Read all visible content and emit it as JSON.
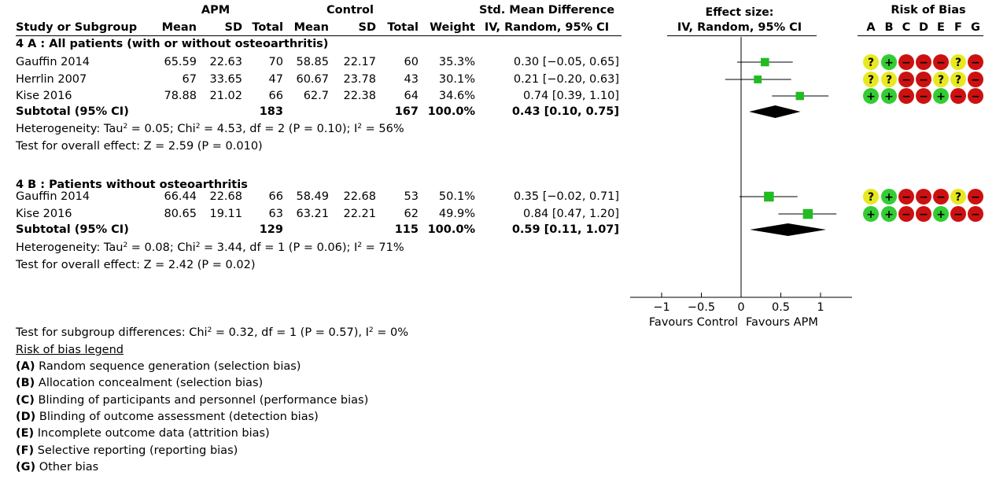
{
  "header": {
    "group_exp": "APM",
    "group_ctrl": "Control",
    "effect_title": "Std. Mean Difference",
    "effect_sub": "IV, Random, 95% CI",
    "plot_title": "Effect size:",
    "plot_sub": "IV, Random, 95% CI",
    "rob_title": "Risk of Bias",
    "cols": {
      "study": "Study or Subgroup",
      "mean_e": "Mean",
      "sd_e": "SD",
      "total_e": "Total",
      "mean_c": "Mean",
      "sd_c": "SD",
      "total_c": "Total",
      "weight": "Weight"
    },
    "rob_letters": [
      "A",
      "B",
      "C",
      "D",
      "E",
      "F",
      "G"
    ]
  },
  "subgroups": [
    {
      "title": "4 A :  All patients (with or without osteoarthritis)",
      "studies": [
        {
          "name": "Gauffin 2014",
          "mean_e": "65.59",
          "sd_e": "22.63",
          "total_e": "70",
          "mean_c": "58.85",
          "sd_c": "22.17",
          "total_c": "60",
          "weight": "35.3%",
          "ci_text": "0.30 [−0.05, 0.65]",
          "rob": [
            "?",
            "+",
            "−",
            "−",
            "−",
            "?",
            "−"
          ]
        },
        {
          "name": "Herrlin 2007",
          "mean_e": "67",
          "sd_e": "33.65",
          "total_e": "47",
          "mean_c": "60.67",
          "sd_c": "23.78",
          "total_c": "43",
          "weight": "30.1%",
          "ci_text": "0.21 [−0.20, 0.63]",
          "rob": [
            "?",
            "?",
            "−",
            "−",
            "?",
            "?",
            "−"
          ]
        },
        {
          "name": "Kise 2016",
          "mean_e": "78.88",
          "sd_e": "21.02",
          "total_e": "66",
          "mean_c": "62.7",
          "sd_c": "22.38",
          "total_c": "64",
          "weight": "34.6%",
          "ci_text": "0.74 [0.39, 1.10]",
          "rob": [
            "+",
            "+",
            "−",
            "−",
            "+",
            "−",
            "−"
          ]
        }
      ],
      "subtotal": {
        "label": "Subtotal (95% CI)",
        "total_e": "183",
        "total_c": "167",
        "weight": "100.0%",
        "ci_text": "0.43 [0.10, 0.75]"
      },
      "heterogeneity": {
        "pre": "Heterogeneity: Tau",
        "sup1": "2",
        "mid": " = 0.05; Chi",
        "sup2": "2",
        "mid2": " = 4.53, df = 2 (P = 0.10); I",
        "sup3": "2",
        "post": " = 56%"
      },
      "overall": "Test for overall effect: Z = 2.59 (P = 0.010)"
    },
    {
      "title": "4 B :  Patients without osteoarthritis",
      "studies": [
        {
          "name": "Gauffin 2014",
          "mean_e": "66.44",
          "sd_e": "22.68",
          "total_e": "66",
          "mean_c": "58.49",
          "sd_c": "22.68",
          "total_c": "53",
          "weight": "50.1%",
          "ci_text": "0.35 [−0.02, 0.71]",
          "rob": [
            "?",
            "+",
            "−",
            "−",
            "−",
            "?",
            "−"
          ]
        },
        {
          "name": "Kise 2016",
          "mean_e": "80.65",
          "sd_e": "19.11",
          "total_e": "63",
          "mean_c": "63.21",
          "sd_c": "22.21",
          "total_c": "62",
          "weight": "49.9%",
          "ci_text": "0.84 [0.47, 1.20]",
          "rob": [
            "+",
            "+",
            "−",
            "−",
            "+",
            "−",
            "−"
          ]
        }
      ],
      "subtotal": {
        "label": "Subtotal (95% CI)",
        "total_e": "129",
        "total_c": "115",
        "weight": "100.0%",
        "ci_text": "0.59 [0.11, 1.07]"
      },
      "heterogeneity": {
        "pre": "Heterogeneity: Tau",
        "sup1": "2",
        "mid": " = 0.08; Chi",
        "sup2": "2",
        "mid2": " = 3.44, df = 1 (P = 0.06); I",
        "sup3": "2",
        "post": " = 71%"
      },
      "overall": "Test for overall effect: Z = 2.42 (P = 0.02)"
    }
  ],
  "subgroup_test": {
    "pre": "Test for subgroup differences: Chi",
    "sup1": "2",
    "mid": " = 0.32, df = 1 (P = 0.57), I",
    "sup2": "2",
    "post": " = 0%"
  },
  "legend": {
    "title": "Risk of bias legend",
    "items": [
      {
        "key": "(A)",
        "text": " Random sequence generation (selection bias)"
      },
      {
        "key": "(B)",
        "text": " Allocation concealment (selection bias)"
      },
      {
        "key": "(C)",
        "text": " Blinding of participants and personnel (performance bias)"
      },
      {
        "key": "(D)",
        "text": " Blinding of outcome assessment (detection bias)"
      },
      {
        "key": "(E)",
        "text": " Incomplete outcome data (attrition bias)"
      },
      {
        "key": "(F)",
        "text": " Selective reporting (reporting bias)"
      },
      {
        "key": "(G)",
        "text": " Other bias"
      }
    ]
  },
  "colors": {
    "study_marker": "#22bb22",
    "rob_low": "#33cc33",
    "rob_unclear": "#e8e820",
    "rob_high": "#cc1111"
  },
  "chart_data": {
    "type": "forest",
    "xlim": [
      -1,
      1
    ],
    "ticks": [
      -1,
      -0.5,
      0,
      0.5,
      1
    ],
    "tick_labels": [
      "−1",
      "−0.5",
      "0",
      "0.5",
      "1"
    ],
    "x_left_label": "Favours Control",
    "x_right_label": "Favours APM",
    "series": [
      {
        "name": "4 A :  All patients (with or without osteoarthritis)",
        "points": [
          {
            "label": "Gauffin 2014",
            "est": 0.3,
            "lo": -0.05,
            "hi": 0.65,
            "weight": 35.3
          },
          {
            "label": "Herrlin 2007",
            "est": 0.21,
            "lo": -0.2,
            "hi": 0.63,
            "weight": 30.1
          },
          {
            "label": "Kise 2016",
            "est": 0.74,
            "lo": 0.39,
            "hi": 1.1,
            "weight": 34.6
          }
        ],
        "summary": {
          "est": 0.43,
          "lo": 0.1,
          "hi": 0.75
        }
      },
      {
        "name": "4 B :  Patients without osteoarthritis",
        "points": [
          {
            "label": "Gauffin 2014",
            "est": 0.35,
            "lo": -0.02,
            "hi": 0.71,
            "weight": 50.1
          },
          {
            "label": "Kise 2016",
            "est": 0.84,
            "lo": 0.47,
            "hi": 1.2,
            "weight": 49.9
          }
        ],
        "summary": {
          "est": 0.59,
          "lo": 0.11,
          "hi": 1.07
        }
      }
    ]
  }
}
